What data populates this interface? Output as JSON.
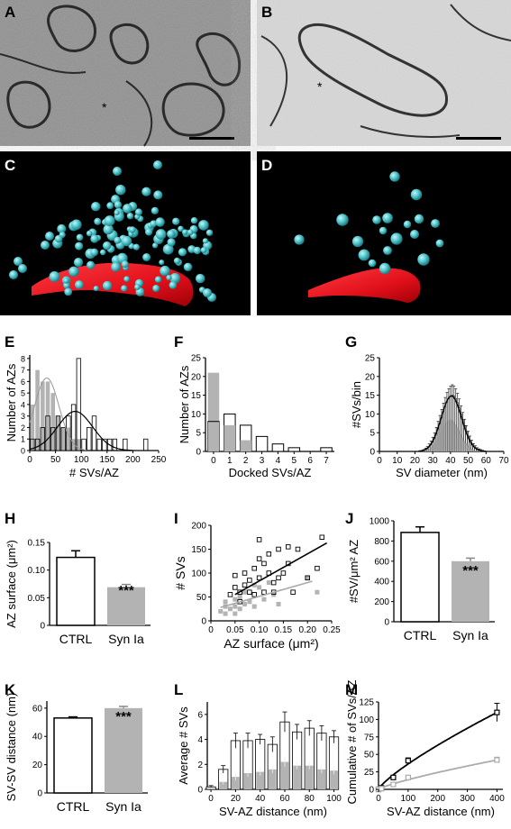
{
  "panel_letters": [
    "A",
    "B",
    "C",
    "D",
    "E",
    "F",
    "G",
    "H",
    "I",
    "J",
    "K",
    "L",
    "M"
  ],
  "micrograph_marks": {
    "a": "*",
    "b": "*"
  },
  "colors": {
    "ctrl": "#ffffff",
    "syn": "#b3b3b3",
    "sv": "#4dc6cc",
    "az": "#e8141c"
  },
  "chart_data": [
    {
      "panel": "E",
      "type": "bar",
      "xlabel": "# SVs/AZ",
      "ylabel": "Number of AZs",
      "xticks": [
        0,
        50,
        100,
        150,
        200,
        250
      ],
      "yticks": [
        0,
        1,
        2,
        3,
        4,
        5,
        6,
        7,
        8
      ],
      "xlim": [
        0,
        250
      ],
      "ylim": [
        0,
        8.3
      ],
      "bin_width": 10,
      "series": [
        {
          "name": "CTRL",
          "x": [
            5,
            15,
            25,
            35,
            45,
            55,
            65,
            75,
            85,
            95,
            105,
            115,
            125,
            135,
            145,
            155,
            165,
            185,
            225
          ],
          "values": [
            1,
            1,
            2,
            3,
            2,
            3,
            2,
            3,
            4,
            8,
            1,
            2,
            3,
            1,
            1,
            1,
            1,
            1,
            1
          ]
        },
        {
          "name": "Syn Ia",
          "x": [
            5,
            15,
            25,
            35,
            45,
            55,
            65,
            75,
            85,
            95
          ],
          "values": [
            4,
            7,
            6,
            6,
            5,
            3,
            2,
            2,
            1,
            1
          ]
        }
      ],
      "fits": [
        {
          "name": "CTRL",
          "peak": 3.4,
          "center": 88,
          "sd": 34
        },
        {
          "name": "Syn Ia",
          "peak": 6.3,
          "center": 33,
          "sd": 24
        }
      ]
    },
    {
      "panel": "F",
      "type": "bar",
      "xlabel": "Docked SVs/AZ",
      "ylabel": "Number of AZs",
      "categories": [
        "0",
        "1",
        "2",
        "3",
        "4",
        "5",
        "6",
        "7"
      ],
      "yticks": [
        0,
        5,
        10,
        15,
        20,
        25
      ],
      "ylim": [
        0,
        25
      ],
      "series": [
        {
          "name": "CTRL",
          "values": [
            8,
            10,
            7,
            4,
            2,
            1,
            0,
            1
          ]
        },
        {
          "name": "Syn Ia",
          "values": [
            21,
            7,
            3,
            0,
            0,
            0,
            0,
            0
          ]
        }
      ]
    },
    {
      "panel": "G",
      "type": "bar",
      "xlabel": "SV diameter (nm)",
      "ylabel": "#SVs/bin",
      "xticks": [
        0,
        10,
        20,
        30,
        40,
        50,
        60,
        70
      ],
      "yticks": [
        0,
        5,
        10,
        15,
        20,
        25
      ],
      "xlim": [
        0,
        70
      ],
      "ylim": [
        0,
        25
      ],
      "bin_width": 1,
      "x": [
        25,
        26,
        27,
        28,
        29,
        30,
        31,
        32,
        33,
        34,
        35,
        36,
        37,
        38,
        39,
        40,
        41,
        42,
        43,
        44,
        45,
        46,
        47,
        48,
        49,
        50,
        51,
        52,
        53,
        54,
        55,
        56,
        57,
        58
      ],
      "series": [
        {
          "name": "CTRL",
          "values": [
            0.2,
            0.4,
            0.7,
            1.2,
            1.8,
            2.6,
            3.6,
            4.8,
            6.2,
            7.6,
            9.1,
            10.6,
            12.0,
            13.2,
            14.1,
            14.7,
            15.0,
            14.8,
            14.1,
            13.0,
            11.6,
            10.0,
            8.4,
            6.8,
            5.3,
            4.0,
            2.9,
            2.0,
            1.3,
            0.9,
            0.5,
            0.3,
            0.2,
            0.1
          ],
          "errors": [
            0.3,
            0.5,
            0.6,
            0.8,
            1.0,
            1.2,
            1.4,
            1.6,
            1.8,
            2.0,
            2.1,
            2.3,
            2.4,
            2.5,
            2.6,
            2.7,
            2.8,
            2.7,
            2.6,
            2.5,
            2.4,
            2.2,
            2.0,
            1.8,
            1.6,
            1.4,
            1.2,
            1.0,
            0.8,
            0.6,
            0.5,
            0.4,
            0.3,
            0.2
          ]
        },
        {
          "name": "Syn Ia",
          "values": [
            0.1,
            0.3,
            0.5,
            0.8,
            1.2,
            1.8,
            2.4,
            3.2,
            4.1,
            5.0,
            6.0,
            6.9,
            7.6,
            8.1,
            8.4,
            8.5,
            8.3,
            7.9,
            7.2,
            6.4,
            5.5,
            4.6,
            3.7,
            2.9,
            2.2,
            1.6,
            1.1,
            0.7,
            0.5,
            0.3,
            0.2,
            0.1,
            0.1,
            0.0
          ]
        }
      ],
      "fit": {
        "peak": 14.8,
        "center": 40.5,
        "sd": 5.7
      }
    },
    {
      "panel": "H",
      "type": "bar",
      "ylabel": "AZ surface (μm²)",
      "categories": [
        "CTRL",
        "Syn Ia"
      ],
      "yticks": [
        "0",
        "0.05",
        "0.10",
        "0.15"
      ],
      "ylim": [
        0,
        0.15
      ],
      "values": [
        0.123,
        0.069
      ],
      "errors": [
        0.012,
        0.005
      ],
      "significance": "***"
    },
    {
      "panel": "I",
      "type": "scatter",
      "xlabel": "AZ surface (μm²)",
      "ylabel": "# SVs",
      "xticks": [
        "0",
        "0.05",
        "0.10",
        "0.15",
        "0.20",
        "0.25"
      ],
      "yticks": [
        0,
        50,
        100,
        150,
        200
      ],
      "xlim": [
        0,
        0.25
      ],
      "ylim": [
        0,
        200
      ],
      "series": [
        {
          "name": "CTRL",
          "points": [
            [
              0.04,
              55
            ],
            [
              0.05,
              70
            ],
            [
              0.06,
              60
            ],
            [
              0.07,
              75
            ],
            [
              0.07,
              100
            ],
            [
              0.08,
              85
            ],
            [
              0.08,
              60
            ],
            [
              0.09,
              110
            ],
            [
              0.1,
              130
            ],
            [
              0.1,
              90
            ],
            [
              0.11,
              120
            ],
            [
              0.11,
              60
            ],
            [
              0.12,
              140
            ],
            [
              0.12,
              100
            ],
            [
              0.13,
              80
            ],
            [
              0.14,
              150
            ],
            [
              0.15,
              100
            ],
            [
              0.16,
              120
            ],
            [
              0.17,
              60
            ],
            [
              0.18,
              150
            ],
            [
              0.2,
              90
            ],
            [
              0.22,
              110
            ],
            [
              0.23,
              175
            ],
            [
              0.06,
              40
            ],
            [
              0.09,
              55
            ],
            [
              0.13,
              60
            ],
            [
              0.14,
              90
            ],
            [
              0.1,
              170
            ],
            [
              0.16,
              155
            ],
            [
              0.05,
              95
            ]
          ],
          "fit": [
            [
              0.05,
              55
            ],
            [
              0.24,
              163
            ]
          ]
        },
        {
          "name": "Syn Ia",
          "points": [
            [
              0.02,
              20
            ],
            [
              0.03,
              30
            ],
            [
              0.03,
              40
            ],
            [
              0.04,
              25
            ],
            [
              0.05,
              45
            ],
            [
              0.05,
              30
            ],
            [
              0.06,
              50
            ],
            [
              0.07,
              35
            ],
            [
              0.07,
              60
            ],
            [
              0.08,
              40
            ],
            [
              0.09,
              30
            ],
            [
              0.1,
              70
            ],
            [
              0.11,
              45
            ],
            [
              0.12,
              80
            ],
            [
              0.13,
              55
            ],
            [
              0.14,
              35
            ],
            [
              0.05,
              15
            ],
            [
              0.06,
              25
            ],
            [
              0.09,
              75
            ],
            [
              0.2,
              90
            ],
            [
              0.22,
              60
            ],
            [
              0.03,
              15
            ]
          ],
          "fit": [
            [
              0.02,
              28
            ],
            [
              0.21,
              83
            ]
          ]
        }
      ]
    },
    {
      "panel": "J",
      "type": "bar",
      "ylabel": "#SV/μm² AZ",
      "categories": [
        "CTRL",
        "Syn Ia"
      ],
      "yticks": [
        0,
        200,
        400,
        600,
        800,
        1000
      ],
      "ylim": [
        0,
        1000
      ],
      "values": [
        885,
        600
      ],
      "errors": [
        55,
        30
      ],
      "significance": "***"
    },
    {
      "panel": "K",
      "type": "bar",
      "ylabel": "SV-SV distance (nm)",
      "categories": [
        "CTRL",
        "Syn Ia"
      ],
      "yticks": [
        0,
        20,
        40,
        60
      ],
      "ylim": [
        0,
        65
      ],
      "values": [
        53,
        60
      ],
      "errors": [
        0.8,
        1.2
      ],
      "significance": "***"
    },
    {
      "panel": "L",
      "type": "bar",
      "xlabel": "SV-AZ distance (nm)",
      "ylabel": "Average # SVs",
      "xticks": [
        0,
        20,
        40,
        60,
        80,
        100
      ],
      "yticks": [
        0,
        2,
        4,
        6
      ],
      "xlim": [
        -3,
        104
      ],
      "ylim": [
        0,
        7
      ],
      "x": [
        0,
        10,
        20,
        30,
        40,
        50,
        60,
        70,
        80,
        90,
        100
      ],
      "series": [
        {
          "name": "CTRL",
          "values": [
            0.2,
            1.6,
            3.9,
            3.9,
            4.0,
            3.6,
            5.4,
            4.6,
            4.9,
            4.5,
            4.2
          ],
          "errors": [
            0.1,
            0.3,
            0.6,
            0.6,
            0.4,
            0.6,
            0.8,
            0.6,
            0.6,
            0.6,
            0.5
          ]
        },
        {
          "name": "Syn Ia",
          "values": [
            0.1,
            0.6,
            1.0,
            1.3,
            1.4,
            1.6,
            2.2,
            1.9,
            1.9,
            1.6,
            1.5
          ],
          "errors": [
            0.05,
            0.2,
            0.3,
            0.3,
            0.3,
            0.3,
            0.4,
            0.3,
            0.3,
            0.3,
            0.3
          ]
        }
      ]
    },
    {
      "panel": "M",
      "type": "line",
      "xlabel": "SV-AZ distance (nm)",
      "ylabel": "Cumulative # of SVs/AZ",
      "xticks": [
        0,
        100,
        200,
        300,
        400
      ],
      "yticks": [
        0,
        25,
        50,
        75,
        100,
        125
      ],
      "xlim": [
        0,
        420
      ],
      "ylim": [
        0,
        125
      ],
      "series": [
        {
          "name": "CTRL",
          "x": [
            0,
            10,
            50,
            100,
            400
          ],
          "values": [
            0,
            2,
            17,
            41,
            110
          ],
          "errors": [
            0,
            1,
            3,
            4,
            13
          ]
        },
        {
          "name": "Syn Ia",
          "x": [
            0,
            10,
            50,
            100,
            400
          ],
          "values": [
            0,
            1,
            7,
            17,
            42
          ],
          "errors": [
            0,
            0.5,
            1,
            2,
            4
          ]
        }
      ]
    }
  ]
}
